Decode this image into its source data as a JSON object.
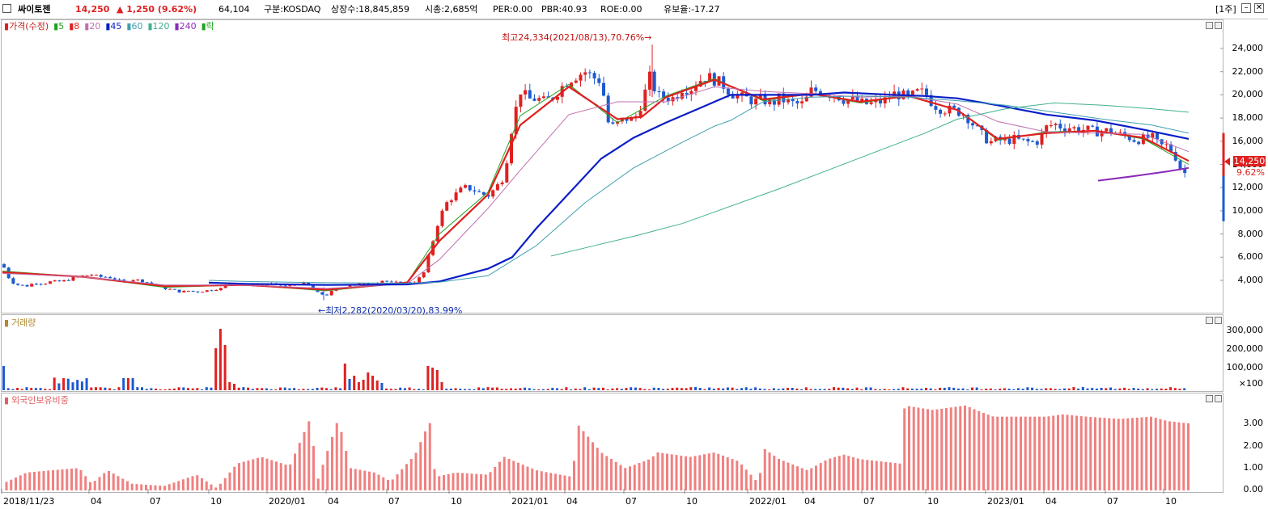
{
  "header": {
    "name": "싸이토젠",
    "price": "14,250",
    "change": "▲ 1,250 (9.62%)",
    "volume": "64,104",
    "market": "구분:KOSDAQ",
    "shares": "상장수:18,845,859",
    "cap": "시총:2,685억",
    "per": "PER:0.00",
    "pbr": "PBR:40.93",
    "roe": "ROE:0.00",
    "float": "유보율:-17.27",
    "period_button": "[1주]"
  },
  "colors": {
    "up": "#e02020",
    "down": "#1e5ad0",
    "ma5": "#1fa31f",
    "ma8": "#e02020",
    "ma20": "#c070b0",
    "ma45": "#0a1ec8",
    "ma60": "#40a0b0",
    "ma120": "#40b090",
    "ma240": "#8a2ab8",
    "foreign": "#f08080"
  },
  "price_pane": {
    "legend": [
      {
        "label": "가격(수정)",
        "color": "#e02020"
      },
      {
        "label": "5",
        "color": "#1fa31f"
      },
      {
        "label": "8",
        "color": "#e02020"
      },
      {
        "label": "20",
        "color": "#c070b0"
      },
      {
        "label": "45",
        "color": "#0a1ec8"
      },
      {
        "label": "60",
        "color": "#40a0b0"
      },
      {
        "label": "120",
        "color": "#40b090"
      },
      {
        "label": "240",
        "color": "#8a2ab8"
      },
      {
        "label": "락",
        "color": "#1fa31f"
      }
    ],
    "y_ticks": [
      "24,000",
      "22,000",
      "20,000",
      "18,000",
      "16,000",
      "14,000",
      "12,000",
      "10,000",
      "8,000",
      "6,000",
      "4,000"
    ],
    "high_annotation": "최고24,334(2021/08/13),70.76%→",
    "low_annotation": "←최저2,282(2020/03/20),83.99%",
    "current_price": "14,250",
    "current_pct": "9.62%"
  },
  "volume_pane": {
    "legend": "거래량",
    "y_ticks": [
      "300,000",
      "200,000",
      "100,000",
      "×100"
    ]
  },
  "foreign_pane": {
    "legend": "외국인보유비중",
    "y_ticks": [
      "3.00",
      "2.00",
      "1.00",
      "0.00"
    ]
  },
  "x_axis": [
    "2018/11/23",
    "04",
    "07",
    "10",
    "2020/01",
    "04",
    "07",
    "10",
    "2021/01",
    "04",
    "07",
    "10",
    "2022/01",
    "04",
    "07",
    "10",
    "2023/01",
    "04",
    "07",
    "10"
  ],
  "chart_data": {
    "type": "candlestick",
    "y_range": [
      2000,
      25000
    ],
    "series": [
      {
        "name": "가격(수정)",
        "points": [
          [
            0,
            5400
          ],
          [
            10,
            3900
          ],
          [
            20,
            3600
          ],
          [
            30,
            3500
          ],
          [
            40,
            3800
          ],
          [
            50,
            3700
          ],
          [
            60,
            3900
          ],
          [
            70,
            3900
          ],
          [
            80,
            4000
          ],
          [
            90,
            4300
          ],
          [
            100,
            4400
          ],
          [
            110,
            4500
          ],
          [
            120,
            4300
          ],
          [
            130,
            4300
          ],
          [
            140,
            4100
          ],
          [
            150,
            3800
          ],
          [
            160,
            4100
          ],
          [
            170,
            4000
          ],
          [
            180,
            3800
          ],
          [
            190,
            3600
          ],
          [
            200,
            3300
          ],
          [
            210,
            3200
          ],
          [
            220,
            3000
          ],
          [
            230,
            3100
          ],
          [
            240,
            3000
          ],
          [
            250,
            3100
          ],
          [
            260,
            3200
          ],
          [
            270,
            3300
          ],
          [
            280,
            3800
          ],
          [
            290,
            3700
          ],
          [
            300,
            3600
          ],
          [
            310,
            3600
          ],
          [
            320,
            3600
          ],
          [
            330,
            3700
          ],
          [
            340,
            3600
          ],
          [
            350,
            3500
          ],
          [
            360,
            3600
          ],
          [
            370,
            3800
          ],
          [
            380,
            3500
          ],
          [
            390,
            2900
          ],
          [
            400,
            2700
          ],
          [
            410,
            3200
          ],
          [
            420,
            3300
          ],
          [
            430,
            3600
          ],
          [
            440,
            3700
          ],
          [
            450,
            3700
          ],
          [
            460,
            3800
          ],
          [
            470,
            4000
          ],
          [
            480,
            3800
          ],
          [
            490,
            3800
          ],
          [
            500,
            3800
          ],
          [
            510,
            3900
          ],
          [
            520,
            4500
          ],
          [
            530,
            6900
          ],
          [
            540,
            9400
          ],
          [
            550,
            10800
          ],
          [
            560,
            11400
          ],
          [
            570,
            12000
          ],
          [
            580,
            11900
          ],
          [
            590,
            11500
          ],
          [
            600,
            11300
          ],
          [
            610,
            12000
          ],
          [
            620,
            13000
          ],
          [
            630,
            17400
          ],
          [
            640,
            20400
          ],
          [
            650,
            19600
          ],
          [
            660,
            19700
          ],
          [
            670,
            19400
          ],
          [
            680,
            19800
          ],
          [
            690,
            20600
          ],
          [
            700,
            21300
          ],
          [
            710,
            21700
          ],
          [
            720,
            22000
          ],
          [
            730,
            21500
          ],
          [
            740,
            21200
          ],
          [
            750,
            17100
          ],
          [
            760,
            17500
          ],
          [
            770,
            18000
          ],
          [
            780,
            17700
          ],
          [
            790,
            19300
          ],
          [
            800,
            21500
          ],
          [
            810,
            19900
          ],
          [
            820,
            19800
          ],
          [
            830,
            19700
          ],
          [
            840,
            20600
          ],
          [
            850,
            20500
          ],
          [
            860,
            21200
          ],
          [
            870,
            21600
          ],
          [
            880,
            21300
          ],
          [
            890,
            20900
          ],
          [
            900,
            20200
          ],
          [
            910,
            19800
          ],
          [
            920,
            19700
          ],
          [
            930,
            19400
          ],
          [
            940,
            19600
          ],
          [
            950,
            19200
          ],
          [
            960,
            19700
          ],
          [
            970,
            19400
          ],
          [
            980,
            19200
          ],
          [
            990,
            19200
          ],
          [
            1000,
            20400
          ],
          [
            1010,
            20300
          ],
          [
            1020,
            20100
          ],
          [
            1030,
            20000
          ],
          [
            1040,
            19600
          ],
          [
            1050,
            19600
          ],
          [
            1060,
            19300
          ],
          [
            1070,
            19200
          ],
          [
            1080,
            19300
          ],
          [
            1090,
            19500
          ],
          [
            1100,
            20100
          ],
          [
            1110,
            20000
          ],
          [
            1120,
            19700
          ],
          [
            1130,
            20200
          ],
          [
            1140,
            20200
          ],
          [
            1150,
            19200
          ],
          [
            1160,
            18800
          ],
          [
            1170,
            18700
          ],
          [
            1180,
            18600
          ],
          [
            1190,
            18300
          ],
          [
            1200,
            17400
          ],
          [
            1210,
            16600
          ],
          [
            1220,
            15900
          ],
          [
            1230,
            16100
          ],
          [
            1240,
            16000
          ],
          [
            1250,
            16200
          ],
          [
            1260,
            16000
          ],
          [
            1270,
            15900
          ],
          [
            1280,
            16000
          ],
          [
            1290,
            17200
          ],
          [
            1300,
            17500
          ],
          [
            1310,
            17200
          ],
          [
            1320,
            17200
          ],
          [
            1330,
            17000
          ],
          [
            1340,
            17000
          ],
          [
            1350,
            16800
          ],
          [
            1360,
            16900
          ],
          [
            1370,
            16900
          ],
          [
            1380,
            16600
          ],
          [
            1390,
            16400
          ],
          [
            1400,
            16100
          ],
          [
            1410,
            16200
          ],
          [
            1420,
            16400
          ],
          [
            1430,
            15600
          ],
          [
            1440,
            15600
          ],
          [
            1450,
            14600
          ],
          [
            1460,
            13000
          ],
          [
            1466,
            14250
          ]
        ]
      },
      {
        "name": "5",
        "points": [
          [
            0,
            4800
          ],
          [
            100,
            4300
          ],
          [
            200,
            3400
          ],
          [
            300,
            3600
          ],
          [
            400,
            3100
          ],
          [
            500,
            3800
          ],
          [
            540,
            8000
          ],
          [
            600,
            11600
          ],
          [
            640,
            18200
          ],
          [
            700,
            20900
          ],
          [
            760,
            17600
          ],
          [
            820,
            19900
          ],
          [
            880,
            21400
          ],
          [
            940,
            19500
          ],
          [
            1000,
            20100
          ],
          [
            1060,
            19300
          ],
          [
            1120,
            19900
          ],
          [
            1180,
            18700
          ],
          [
            1230,
            16100
          ],
          [
            1290,
            16800
          ],
          [
            1350,
            16900
          ],
          [
            1410,
            16200
          ],
          [
            1466,
            14000
          ]
        ]
      },
      {
        "name": "8",
        "points": [
          [
            0,
            4700
          ],
          [
            100,
            4300
          ],
          [
            200,
            3500
          ],
          [
            300,
            3600
          ],
          [
            400,
            3200
          ],
          [
            500,
            3800
          ],
          [
            540,
            7400
          ],
          [
            600,
            11400
          ],
          [
            640,
            17400
          ],
          [
            700,
            20700
          ],
          [
            760,
            17900
          ],
          [
            790,
            18100
          ],
          [
            820,
            19800
          ],
          [
            880,
            21300
          ],
          [
            940,
            19600
          ],
          [
            1000,
            20100
          ],
          [
            1060,
            19400
          ],
          [
            1120,
            19900
          ],
          [
            1180,
            18700
          ],
          [
            1230,
            16200
          ],
          [
            1290,
            16700
          ],
          [
            1350,
            16900
          ],
          [
            1410,
            16300
          ],
          [
            1466,
            14300
          ]
        ]
      },
      {
        "name": "20",
        "points": [
          [
            0,
            4600
          ],
          [
            100,
            4300
          ],
          [
            200,
            3600
          ],
          [
            300,
            3600
          ],
          [
            400,
            3300
          ],
          [
            500,
            3700
          ],
          [
            540,
            5800
          ],
          [
            600,
            10200
          ],
          [
            640,
            13500
          ],
          [
            700,
            18300
          ],
          [
            760,
            19400
          ],
          [
            820,
            19400
          ],
          [
            880,
            20700
          ],
          [
            940,
            20300
          ],
          [
            1000,
            20100
          ],
          [
            1060,
            19800
          ],
          [
            1120,
            19900
          ],
          [
            1180,
            19200
          ],
          [
            1230,
            17700
          ],
          [
            1290,
            16800
          ],
          [
            1350,
            16700
          ],
          [
            1410,
            16600
          ],
          [
            1466,
            15100
          ]
        ]
      },
      {
        "name": "45",
        "points": [
          [
            255,
            3800
          ],
          [
            300,
            3700
          ],
          [
            400,
            3600
          ],
          [
            500,
            3650
          ],
          [
            540,
            3900
          ],
          [
            600,
            5000
          ],
          [
            630,
            6000
          ],
          [
            660,
            8500
          ],
          [
            700,
            11500
          ],
          [
            740,
            14500
          ],
          [
            780,
            16300
          ],
          [
            820,
            17600
          ],
          [
            860,
            18800
          ],
          [
            900,
            20000
          ],
          [
            940,
            20000
          ],
          [
            1000,
            20000
          ],
          [
            1040,
            20200
          ],
          [
            1100,
            20000
          ],
          [
            1140,
            19900
          ],
          [
            1180,
            19700
          ],
          [
            1230,
            19100
          ],
          [
            1290,
            18300
          ],
          [
            1350,
            17800
          ],
          [
            1410,
            17000
          ],
          [
            1466,
            16200
          ]
        ]
      },
      {
        "name": "60",
        "points": [
          [
            255,
            4000
          ],
          [
            300,
            3900
          ],
          [
            400,
            3800
          ],
          [
            500,
            3750
          ],
          [
            540,
            3850
          ],
          [
            600,
            4400
          ],
          [
            660,
            7000
          ],
          [
            720,
            10700
          ],
          [
            780,
            13700
          ],
          [
            840,
            15900
          ],
          [
            880,
            17300
          ],
          [
            900,
            17800
          ],
          [
            940,
            19400
          ],
          [
            1000,
            19800
          ],
          [
            1060,
            19900
          ],
          [
            1120,
            19800
          ],
          [
            1180,
            19500
          ],
          [
            1240,
            19100
          ],
          [
            1300,
            18500
          ],
          [
            1360,
            17900
          ],
          [
            1420,
            17400
          ],
          [
            1466,
            16700
          ]
        ]
      },
      {
        "name": "120",
        "points": [
          [
            678,
            6100
          ],
          [
            720,
            6800
          ],
          [
            780,
            7800
          ],
          [
            840,
            8900
          ],
          [
            900,
            10400
          ],
          [
            960,
            11900
          ],
          [
            1020,
            13500
          ],
          [
            1080,
            15100
          ],
          [
            1140,
            16700
          ],
          [
            1180,
            17900
          ],
          [
            1240,
            18800
          ],
          [
            1300,
            19300
          ],
          [
            1360,
            19100
          ],
          [
            1420,
            18800
          ],
          [
            1466,
            18500
          ]
        ]
      },
      {
        "name": "240",
        "points": [
          [
            1354,
            12600
          ],
          [
            1400,
            13000
          ],
          [
            1440,
            13400
          ],
          [
            1466,
            13700
          ]
        ]
      }
    ]
  }
}
